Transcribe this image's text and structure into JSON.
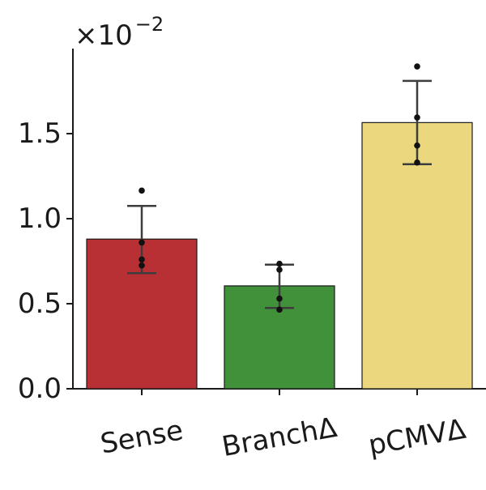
{
  "chart_data": {
    "type": "bar",
    "title": "",
    "xlabel": "",
    "ylabel": "",
    "y_multiplier": "×10",
    "y_multiplier_exponent": "−2",
    "ylim": [
      0,
      2.0
    ],
    "yticks": [
      {
        "value": 0.0,
        "label": "0.0"
      },
      {
        "value": 0.5,
        "label": "0.5"
      },
      {
        "value": 1.0,
        "label": "1.0"
      },
      {
        "value": 1.5,
        "label": "1.5"
      }
    ],
    "categories": [
      "Sense",
      "BranchΔ",
      "pCMVΔ"
    ],
    "values": [
      0.88,
      0.605,
      1.565
    ],
    "error_low": [
      0.68,
      0.475,
      1.32
    ],
    "error_high": [
      1.075,
      0.73,
      1.81
    ],
    "points": [
      [
        1.165,
        0.86,
        0.76,
        0.725
      ],
      [
        0.735,
        0.7,
        0.53,
        0.465
      ],
      [
        1.895,
        1.595,
        1.43,
        1.33
      ]
    ],
    "colors": [
      "#b83034",
      "#40913a",
      "#ebd87e"
    ],
    "grid": false,
    "legend": "none"
  }
}
